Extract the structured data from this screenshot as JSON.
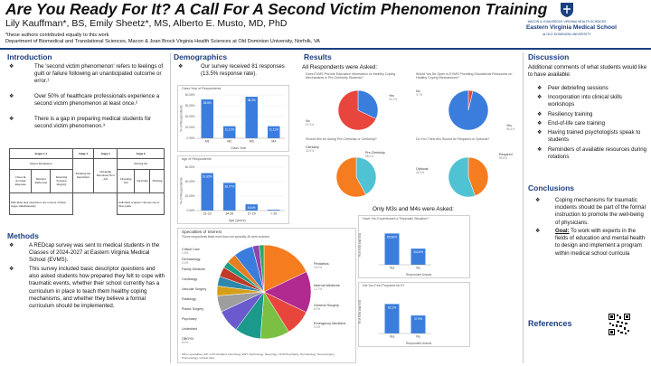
{
  "header": {
    "title": "Are You Ready For It? A Call For A Second Victim Phenomenon Training",
    "authors": "Lily Kauffman*, BS, Emily Sheetz*, MS,  Alberto E. Musto, MD, PhD",
    "note": "*these authors contributed equally to this work",
    "department": "Department of Biomedical and Translational Sciences, Macon & Joan Brock Virginia Health Sciences at Old Dominion University, Norfolk, VA",
    "logo_top": "MACON & JOAN BROCK VIRGINIA HEALTH SCIENCES",
    "logo_main": "Eastern Virginia Medical School",
    "logo_sub": "at OLD DOMINION UNIVERSITY"
  },
  "introduction": {
    "heading": "Introduction",
    "bullets": [
      "The 'second victim phenomenon' refers to feelings of guilt or failure following an unanticipated outcome or error.¹",
      "Over 50% of healthcare professionals experience a second victim phenomenon at least once.²",
      "There is a gap in preparing medical students for second victim phenomenon.³"
    ],
    "stages": {
      "groups": [
        "Stages 1-3",
        "Stage 4",
        "Stage 5",
        "Stage 6"
      ],
      "group_labels": [
        "Impact Realization",
        "Enduring the Inquisition",
        "Obtaining Emotional First Aid",
        "Moving On"
      ],
      "cells": [
        "Chaos & Accident Response",
        "Intrusive Reflection",
        "Restoring Personal Integrity",
        "Dropping Out",
        "Surviving",
        "Thriving"
      ],
      "footer_left": "Individual may experience one or more of these stages simultaneously",
      "footer_right": "Individual acquires/ chooses one of three paths"
    }
  },
  "methods": {
    "heading": "Methods",
    "bullets": [
      "A REDcap survey was sent to medical students in the Classes of 2024-2027 at Eastern Virginia Medical School (EVMS).",
      "This survey included basic descriptor questions and also asked students how prepared they felt to cope with traumatic events, whether their school currently has a curriculum in place to teach them healthy coping mechanisms, and whether they believe a formal curriculum should be implemented."
    ]
  },
  "demographics": {
    "heading": "Demographics",
    "bullet": "Our survey received 81 responses (13.5% response rate).",
    "class_year": {
      "title": "Class Year of Respondents",
      "xlabel": "Class Year",
      "ylabel": "% of Respondents",
      "yticks": [
        "0.00%",
        "10.00%",
        "20.00%",
        "30.00%",
        "40.00%"
      ]
    },
    "age": {
      "title": "Age of Respondents",
      "xlabel": "Age (years)",
      "ylabel": "% of Respondents",
      "yticks": [
        "0.00%",
        "20.00%",
        "40.00%",
        "60.00%"
      ]
    },
    "specialties": {
      "title": "Specialties of Interest",
      "subtitle": "*Some respondents listed more than one specialty. All were included.",
      "footnote": "Other specialties with 1-2% Pediatric Neurology, ENT, Nephrology, Neurology, Child Psychiatry, Dermatology, Neurosurgery, Pulmonology, Critical Care"
    }
  },
  "results": {
    "heading": "Results",
    "all_label": "All Respondents were Asked:",
    "m3m4_label": "Only M3s and M4s were Asked:",
    "q1": "Does EVMS Provide Education Information on Healthy Coping Mechanisms in Pre-Clerkship Students?",
    "q2": "Would You Be Open to EVMS Providing Educational Resources on Healthy Coping Mechanisms?",
    "q3": "Should this be during Pre-Clerkship or Clerkship?",
    "q4": "Do You Think this Should be Required or Optional?",
    "q5": "Have You Experienced a Traumatic Situation?",
    "q6": "Did You Feel Prepared for It?",
    "bar_xlabel": "Respondent Answer",
    "bar_ylabel": "% of M3s and M4s"
  },
  "discussion": {
    "heading": "Discussion",
    "intro": "Additional comments of what students would like to have available:",
    "items": [
      "Peer debriefing sessions",
      "Incorporation into clinical skills workshops",
      "Resiliency training",
      "End-of-life care training",
      "Having trained psychologists speak to students",
      "Reminders of available resources during rotations"
    ]
  },
  "conclusions": {
    "heading": "Conclusions",
    "bullet1": "Coping mechanisms for traumatic incidents should be part of the formal instruction to promote the well-being of physicians.",
    "goal_label": "Goal:",
    "bullet2": " To work with experts in the fields of education and mental health to design and implement a program within medical school curricula"
  },
  "references": {
    "heading": "References"
  },
  "colors": {
    "navy": "#1c3f80",
    "bar": "#3b7ddd",
    "pie_blue": "#3b7ddd",
    "pie_red": "#e8453c",
    "pie_teal": "#4fc3d3",
    "pie_orange": "#f57c1f"
  },
  "chart_data": [
    {
      "type": "bar",
      "title": "Class Year of Respondents",
      "xlabel": "Class Year",
      "ylabel": "% of Respondents",
      "categories": [
        "M1",
        "M2",
        "M3",
        "M4"
      ],
      "values": [
        35.8,
        11.1,
        38.3,
        11.1
      ],
      "labels": [
        "35.8%",
        "11.11%",
        "38.3%",
        "11.11%"
      ],
      "ylim": [
        0,
        40
      ]
    },
    {
      "type": "bar",
      "title": "Age of Respondents",
      "xlabel": "Age (years)",
      "ylabel": "% of Respondents",
      "categories": [
        "21-23",
        "24-26",
        "27-29",
        "> 29"
      ],
      "values": [
        51.8,
        38.3,
        8.6,
        1.2
      ],
      "labels": [
        "51.85%",
        "38.27%",
        "8.64%",
        "1.23%"
      ],
      "ylim": [
        0,
        60
      ]
    },
    {
      "type": "pie",
      "title": "Specialties of Interest",
      "categories": [
        "Pediatrics",
        "Internal Medicine",
        "General Surgery",
        "Emergency Medicine",
        "OBGYN",
        "Undecided",
        "Psychiatry",
        "Plastic Surgery",
        "Radiology",
        "Vascular Surgery",
        "Cardiology",
        "Orthopedics",
        "Family Medicine",
        "Dermatology",
        "Critical Care"
      ],
      "values": [
        16.0,
        12.7,
        8.0,
        9.0,
        8.0,
        7.0,
        5.0,
        3.0,
        3.0,
        3.0,
        2.0,
        3.0,
        6.0,
        2.0,
        1.5
      ],
      "labels": [
        "16.0%",
        "12.7%",
        "8.0%",
        "9.0%",
        "8.0%",
        "",
        "",
        "",
        "",
        "",
        "",
        "",
        "",
        "2.0%",
        "1.5%"
      ]
    },
    {
      "type": "pie",
      "title": "Does EVMS Provide Education Information on Healthy Coping Mechanisms in Pre-Clerkship Students?",
      "categories": [
        "Yes",
        "No"
      ],
      "values": [
        32.1,
        67.9
      ],
      "labels": [
        "32.1%",
        "67.9%"
      ]
    },
    {
      "type": "pie",
      "title": "Would You Be Open to EVMS Providing Educational Resources on Healthy Coping Mechanisms?",
      "categories": [
        "No",
        "Yes"
      ],
      "values": [
        3.7,
        96.3
      ],
      "labels": [
        "3.7%",
        "96.3%"
      ]
    },
    {
      "type": "pie",
      "title": "Should this be during Pre-Clerkship or Clerkship?",
      "categories": [
        "Clerkship",
        "Pre-Clerkship"
      ],
      "values": [
        42.0,
        58.0
      ],
      "labels": [
        "42.0%",
        "58.0%"
      ]
    },
    {
      "type": "pie",
      "title": "Do You Think this Should be Required or Optional?",
      "categories": [
        "Optional",
        "Required"
      ],
      "values": [
        44.4,
        55.6
      ],
      "labels": [
        "44.4%",
        "55.6%"
      ]
    },
    {
      "type": "bar",
      "title": "Have You Experienced a Traumatic Situation?",
      "xlabel": "Respondent Answer",
      "ylabel": "% of M3s and M4s",
      "categories": [
        "Yes",
        "No"
      ],
      "values": [
        65.96,
        34.04
      ],
      "labels": [
        "65.96%",
        "34.04%"
      ],
      "ylim": [
        0,
        80
      ]
    },
    {
      "type": "bar",
      "title": "Did You Feel Prepared for It?",
      "xlabel": "Respondent Answer",
      "ylabel": "% of M3s and M4s",
      "categories": [
        "Yes",
        "No"
      ],
      "values": [
        62.1,
        37.9
      ],
      "labels": [
        "62.1%",
        "37.9%"
      ],
      "ylim": [
        0,
        80
      ]
    }
  ]
}
